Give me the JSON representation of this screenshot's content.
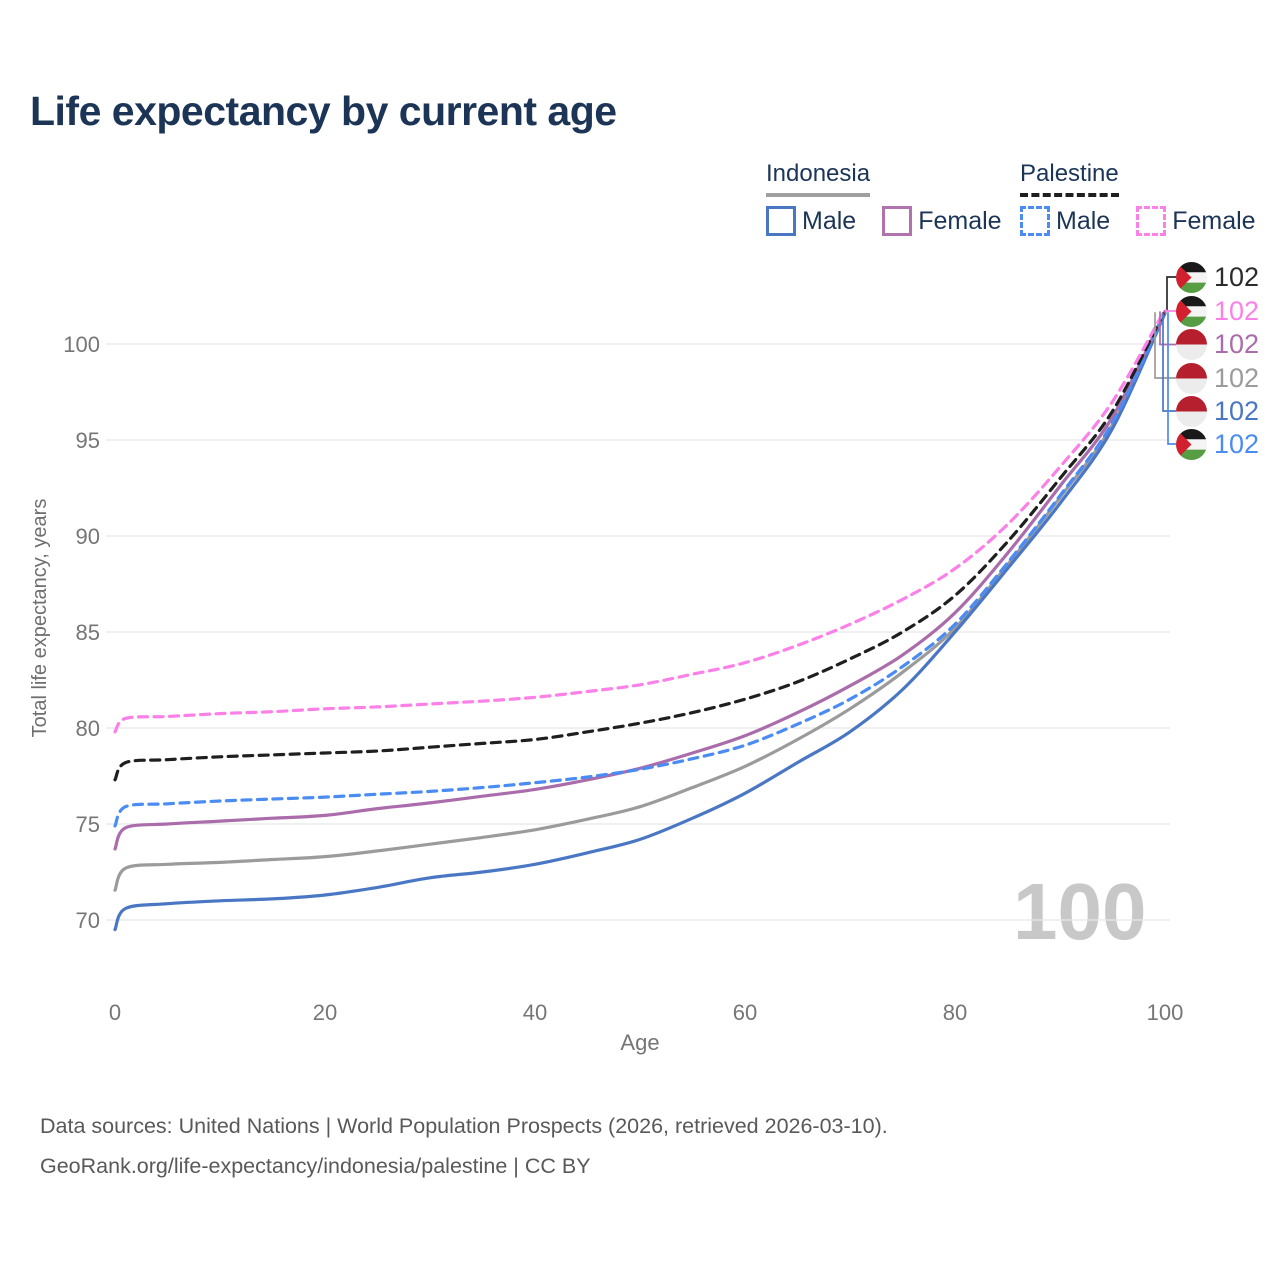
{
  "title": "Life expectancy by current age",
  "watermark": "100",
  "legend": {
    "groups": [
      {
        "country": "Indonesia",
        "line_style": "solid",
        "underline_color": "#a0a0a0",
        "items": [
          {
            "label": "Male",
            "color": "#4a77c4",
            "dashed": false
          },
          {
            "label": "Female",
            "color": "#b172ae",
            "dashed": false
          }
        ]
      },
      {
        "country": "Palestine",
        "line_style": "dashed",
        "underline_color": "#1f1f1f",
        "items": [
          {
            "label": "Male",
            "color": "#4a8cf2",
            "dashed": true
          },
          {
            "label": "Female",
            "color": "#fb80e8",
            "dashed": true
          }
        ]
      }
    ]
  },
  "chart_data": {
    "type": "line",
    "title": "Life expectancy by current age",
    "xlabel": "Age",
    "ylabel": "Total life expectancy, years",
    "x_ticks": [
      0,
      20,
      40,
      60,
      80,
      100
    ],
    "y_ticks": [
      70,
      75,
      80,
      85,
      90,
      95,
      100
    ],
    "xlim": [
      0,
      100
    ],
    "ylim": [
      68.5,
      103
    ],
    "grid": "horizontal",
    "x": [
      0,
      1,
      5,
      10,
      15,
      20,
      25,
      30,
      35,
      40,
      45,
      50,
      55,
      60,
      65,
      70,
      75,
      80,
      85,
      90,
      95,
      100
    ],
    "series": [
      {
        "name": "Indonesia Both sexes",
        "country": "indonesia",
        "sex": "both",
        "color": "#9b9b9b",
        "dashed": false,
        "values": [
          71.55,
          72.7,
          72.9,
          73.0,
          73.15,
          73.3,
          73.6,
          73.95,
          74.3,
          74.7,
          75.25,
          75.9,
          76.9,
          78.0,
          79.4,
          81.0,
          82.9,
          85.2,
          88.5,
          92.0,
          95.8,
          101.65
        ]
      },
      {
        "name": "Indonesia Male",
        "country": "indonesia",
        "sex": "male",
        "color": "#4a77c4",
        "dashed": false,
        "values": [
          69.5,
          70.6,
          70.85,
          71.0,
          71.1,
          71.3,
          71.7,
          72.2,
          72.5,
          72.9,
          73.5,
          74.2,
          75.3,
          76.6,
          78.2,
          79.8,
          82.0,
          85.0,
          88.3,
          91.7,
          95.6,
          101.6
        ]
      },
      {
        "name": "Indonesia Female",
        "country": "indonesia",
        "sex": "female",
        "color": "#aa6cab",
        "dashed": false,
        "values": [
          73.7,
          74.8,
          75.0,
          75.15,
          75.3,
          75.45,
          75.8,
          76.1,
          76.45,
          76.8,
          77.3,
          77.9,
          78.7,
          79.6,
          80.8,
          82.2,
          83.8,
          86.0,
          89.1,
          92.6,
          96.2,
          101.7
        ]
      },
      {
        "name": "Palestine Male",
        "country": "palestine",
        "sex": "male",
        "color": "#4a8cf2",
        "dashed": true,
        "values": [
          74.9,
          75.9,
          76.05,
          76.2,
          76.3,
          76.4,
          76.55,
          76.7,
          76.9,
          77.15,
          77.45,
          77.85,
          78.4,
          79.1,
          80.2,
          81.5,
          83.2,
          85.4,
          88.6,
          92.1,
          95.9,
          101.65
        ]
      },
      {
        "name": "Palestine Both sexes",
        "country": "palestine",
        "sex": "both",
        "color": "#1f1f1f",
        "dashed": true,
        "values": [
          77.3,
          78.2,
          78.35,
          78.5,
          78.6,
          78.7,
          78.8,
          79.0,
          79.2,
          79.4,
          79.8,
          80.25,
          80.8,
          81.5,
          82.4,
          83.6,
          85.0,
          86.9,
          89.7,
          93.0,
          96.5,
          101.75
        ]
      },
      {
        "name": "Palestine Female",
        "country": "palestine",
        "sex": "female",
        "color": "#fb80e8",
        "dashed": true,
        "values": [
          79.8,
          80.5,
          80.6,
          80.75,
          80.85,
          81.0,
          81.1,
          81.25,
          81.4,
          81.6,
          81.9,
          82.25,
          82.8,
          83.4,
          84.3,
          85.4,
          86.7,
          88.3,
          90.6,
          93.6,
          97.0,
          101.8
        ]
      }
    ],
    "end_labels": [
      {
        "value": "102",
        "series": "Palestine Both sexes",
        "flag": "palestine",
        "color": "#2b2b2b"
      },
      {
        "value": "102",
        "series": "Palestine Female",
        "flag": "palestine",
        "color": "#fb80e8"
      },
      {
        "value": "102",
        "series": "Indonesia Female",
        "flag": "indonesia",
        "color": "#aa6cab"
      },
      {
        "value": "102",
        "series": "Indonesia Both sexes",
        "flag": "indonesia",
        "color": "#9b9b9b"
      },
      {
        "value": "102",
        "series": "Indonesia Male",
        "flag": "indonesia",
        "color": "#4a77c4"
      },
      {
        "value": "102",
        "series": "Palestine Male",
        "flag": "palestine",
        "color": "#4a8cf2"
      }
    ],
    "legend_position": "top-right"
  },
  "footer": {
    "line1": "Data sources: United Nations | World Population Prospects (2026, retrieved 2026-03-10).",
    "line2": "GeoRank.org/life-expectancy/indonesia/palestine | CC BY"
  }
}
